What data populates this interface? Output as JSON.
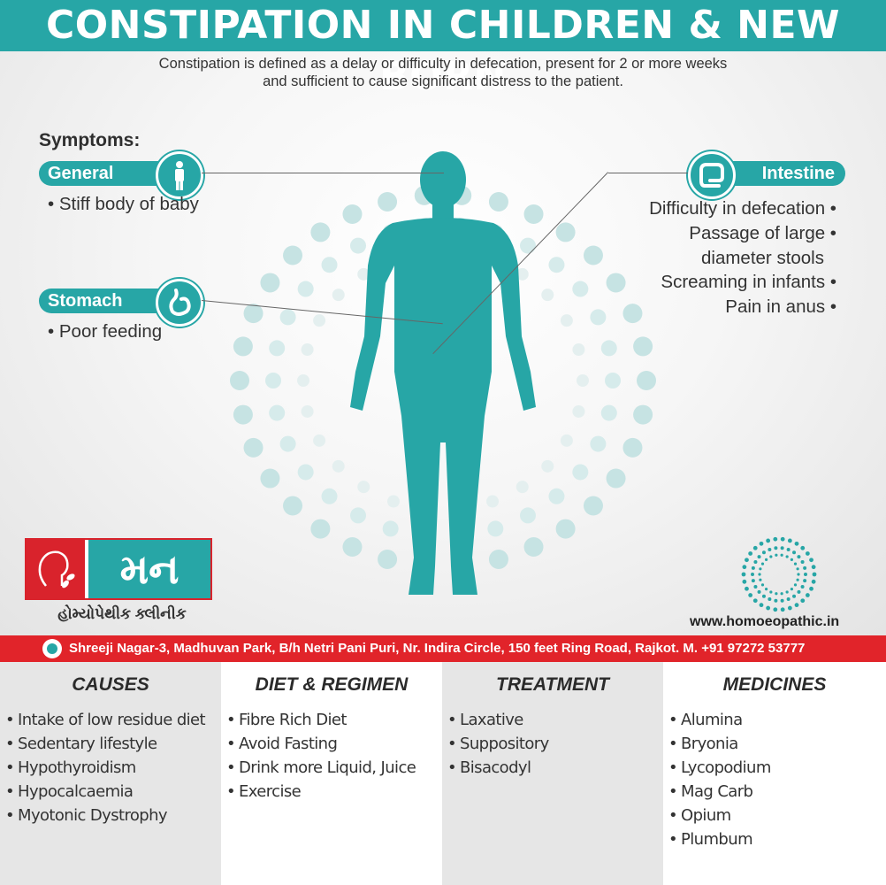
{
  "title": "CONSTIPATION IN CHILDREN & NEW BORN",
  "definition": {
    "line1": "Constipation is defined as a delay or difficulty in defecation, present for 2 or more weeks",
    "line2": "and sufficient to cause significant distress to the patient."
  },
  "symptoms": {
    "heading": "Symptoms:",
    "general": {
      "label": "General",
      "items": [
        "• Stiff body of baby"
      ]
    },
    "stomach": {
      "label": "Stomach",
      "items": [
        "• Poor feeding"
      ]
    },
    "intestine": {
      "label": "Intestine",
      "items": [
        "Difficulty in defecation •",
        "Passage of large •",
        "diameter stools",
        "Screaming in infants •",
        "Pain in anus •"
      ]
    }
  },
  "clinic": {
    "logo_text": "મન",
    "subtitle": "હોમ્યોપેથીક ક્લીનીક",
    "website": "www.homoeopathic.in",
    "address": "Shreeji Nagar-3, Madhuvan Park, B/h Netri Pani Puri, Nr. Indira Circle, 150 feet Ring Road, Rajkot. M. +91 97272 53777"
  },
  "columns": [
    {
      "heading": "CAUSES",
      "items": [
        "Intake of low residue diet",
        "Sedentary lifestyle",
        "Hypothyroidism",
        "Hypocalcaemia",
        "Myotonic Dystrophy"
      ]
    },
    {
      "heading": "DIET & REGIMEN",
      "items": [
        "Fibre Rich Diet",
        "Avoid Fasting",
        "Drink more Liquid, Juice",
        "Exercise"
      ]
    },
    {
      "heading": "TREATMENT",
      "items": [
        "Laxative",
        "Suppository",
        "Bisacodyl"
      ]
    },
    {
      "heading": "MEDICINES",
      "items": [
        "Alumina",
        "Bryonia",
        "Lycopodium",
        "Mag Carb",
        "Opium",
        "Plumbum"
      ]
    }
  ],
  "colors": {
    "teal": "#27a6a6",
    "red": "#e1242a",
    "col_gray": "#e6e6e6",
    "col_white": "#ffffff"
  }
}
